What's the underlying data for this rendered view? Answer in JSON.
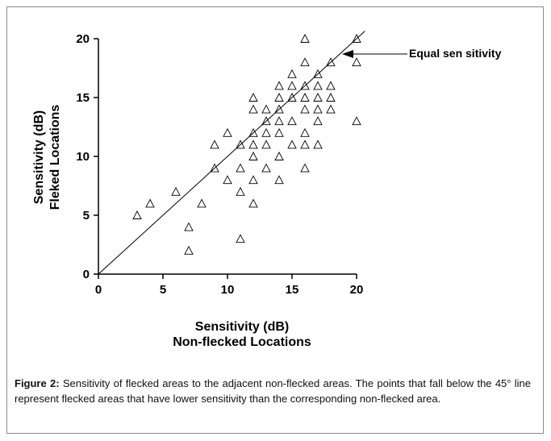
{
  "figure": {
    "caption_label": "Figure 2:",
    "caption_text": " Sensitivity of flecked areas to the adjacent non-flecked areas. The points that fall below the 45° line represent flecked areas that have lower sensitivity than the corresponding non-flecked area."
  },
  "chart_data": {
    "type": "scatter",
    "xlabel_line1": "Sensitivity (dB)",
    "xlabel_line2": "Non-flecked Locations",
    "ylabel_line1": "Sensitivity (dB)",
    "ylabel_line2": "Fleked Locations",
    "xlim": [
      0,
      20
    ],
    "ylim": [
      0,
      20
    ],
    "x_ticks": [
      0,
      5,
      10,
      15,
      20
    ],
    "y_ticks": [
      0,
      5,
      10,
      15,
      20
    ],
    "marker": "open-triangle",
    "reference_line": {
      "label": "Equal sen sitivity",
      "from": [
        0,
        0
      ],
      "to": [
        20,
        20
      ]
    },
    "points": [
      [
        3,
        5
      ],
      [
        4,
        6
      ],
      [
        6,
        7
      ],
      [
        7,
        4
      ],
      [
        7,
        2
      ],
      [
        8,
        6
      ],
      [
        9,
        11
      ],
      [
        9,
        9
      ],
      [
        10,
        12
      ],
      [
        10,
        8
      ],
      [
        11,
        11
      ],
      [
        11,
        9
      ],
      [
        11,
        7
      ],
      [
        11,
        3
      ],
      [
        12,
        15
      ],
      [
        12,
        14
      ],
      [
        12,
        12
      ],
      [
        12,
        11
      ],
      [
        12,
        10
      ],
      [
        12,
        8
      ],
      [
        12,
        6
      ],
      [
        13,
        14
      ],
      [
        13,
        13
      ],
      [
        13,
        12
      ],
      [
        13,
        11
      ],
      [
        13,
        9
      ],
      [
        14,
        16
      ],
      [
        14,
        15
      ],
      [
        14,
        14
      ],
      [
        14,
        13
      ],
      [
        14,
        12
      ],
      [
        14,
        10
      ],
      [
        14,
        8
      ],
      [
        15,
        17
      ],
      [
        15,
        16
      ],
      [
        15,
        15
      ],
      [
        15,
        13
      ],
      [
        15,
        11
      ],
      [
        16,
        20
      ],
      [
        16,
        18
      ],
      [
        16,
        16
      ],
      [
        16,
        15
      ],
      [
        16,
        14
      ],
      [
        16,
        12
      ],
      [
        16,
        11
      ],
      [
        16,
        9
      ],
      [
        17,
        17
      ],
      [
        17,
        16
      ],
      [
        17,
        15
      ],
      [
        17,
        14
      ],
      [
        17,
        13
      ],
      [
        17,
        11
      ],
      [
        18,
        18
      ],
      [
        18,
        16
      ],
      [
        18,
        15
      ],
      [
        18,
        14
      ],
      [
        20,
        20
      ],
      [
        20,
        18
      ],
      [
        20,
        13
      ]
    ]
  }
}
